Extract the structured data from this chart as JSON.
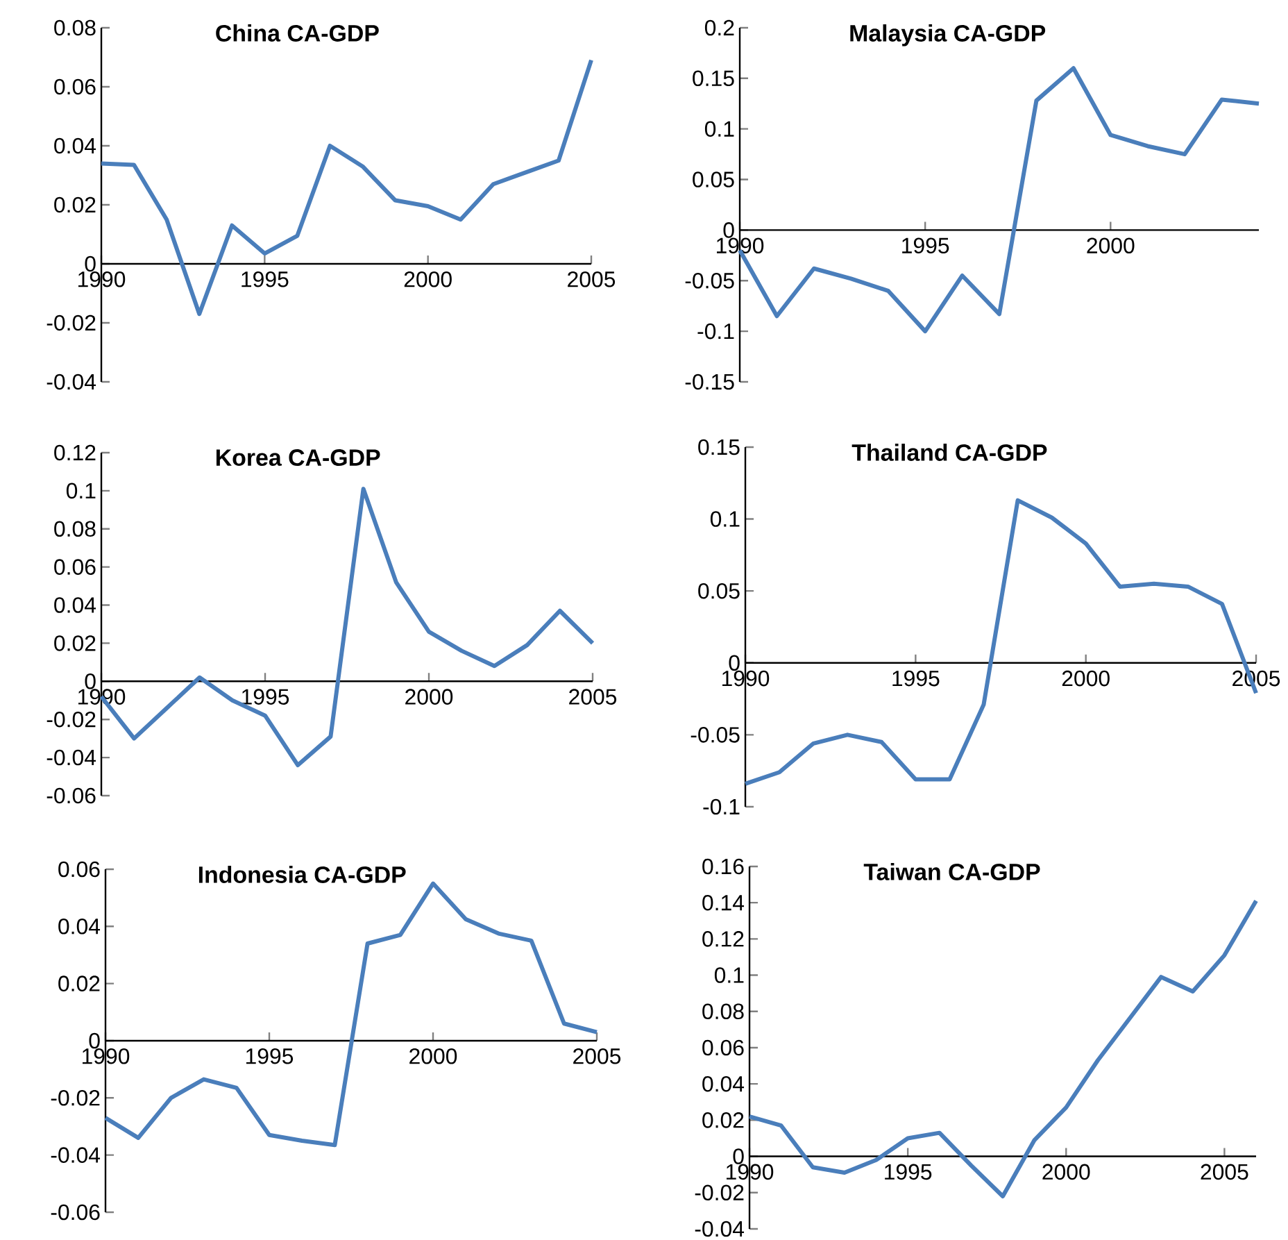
{
  "chart_data": [
    {
      "type": "line",
      "title": "China CA-GDP",
      "color": "#4a7ebb",
      "x": [
        1990,
        1991,
        1992,
        1993,
        1994,
        1995,
        1996,
        1997,
        1998,
        1999,
        2000,
        2001,
        2002,
        2003,
        2004,
        2005
      ],
      "values": [
        0.034,
        0.0335,
        0.015,
        -0.017,
        0.013,
        0.0035,
        0.0095,
        0.04,
        0.033,
        0.0215,
        0.0195,
        0.015,
        0.027,
        0.031,
        0.035,
        0.069
      ],
      "xlim": [
        1990,
        2005
      ],
      "ylim": [
        -0.04,
        0.08
      ],
      "xticks": [
        1990,
        1995,
        2000,
        2005
      ],
      "yticks": [
        -0.04,
        -0.02,
        0,
        0.02,
        0.04,
        0.06,
        0.08
      ]
    },
    {
      "type": "line",
      "title": "Malaysia CA-GDP",
      "color": "#4a7ebb",
      "x": [
        1990,
        1991,
        1992,
        1993,
        1994,
        1995,
        1996,
        1997,
        1998,
        1999,
        2000,
        2001,
        2002,
        2003,
        2004
      ],
      "values": [
        -0.02,
        -0.085,
        -0.038,
        -0.048,
        -0.06,
        -0.1,
        -0.045,
        -0.083,
        0.128,
        0.16,
        0.094,
        0.083,
        0.075,
        0.129,
        0.125
      ],
      "xlim": [
        1990,
        2004
      ],
      "ylim": [
        -0.15,
        0.2
      ],
      "xticks": [
        1990,
        1995,
        2000
      ],
      "yticks": [
        -0.15,
        -0.1,
        -0.05,
        0,
        0.05,
        0.1,
        0.15,
        0.2
      ]
    },
    {
      "type": "line",
      "title": "Korea CA-GDP",
      "color": "#4a7ebb",
      "x": [
        1990,
        1991,
        1992,
        1993,
        1994,
        1995,
        1996,
        1997,
        1998,
        1999,
        2000,
        2001,
        2002,
        2003,
        2004,
        2005
      ],
      "values": [
        -0.008,
        -0.03,
        -0.014,
        0.002,
        -0.01,
        -0.018,
        -0.044,
        -0.029,
        0.101,
        0.052,
        0.026,
        0.016,
        0.008,
        0.019,
        0.037,
        0.02
      ],
      "xlim": [
        1990,
        2005
      ],
      "ylim": [
        -0.06,
        0.12
      ],
      "xticks": [
        1990,
        1995,
        2000,
        2005
      ],
      "yticks": [
        -0.06,
        -0.04,
        -0.02,
        0,
        0.02,
        0.04,
        0.06,
        0.08,
        0.1,
        0.12
      ]
    },
    {
      "type": "line",
      "title": "Thailand CA-GDP",
      "color": "#4a7ebb",
      "x": [
        1990,
        1991,
        1992,
        1993,
        1994,
        1995,
        1996,
        1997,
        1998,
        1999,
        2000,
        2001,
        2002,
        2003,
        2004,
        2005
      ],
      "values": [
        -0.084,
        -0.076,
        -0.056,
        -0.05,
        -0.055,
        -0.081,
        -0.081,
        -0.029,
        0.113,
        0.101,
        0.083,
        0.053,
        0.055,
        0.053,
        0.041,
        -0.021
      ],
      "xlim": [
        1990,
        2005
      ],
      "ylim": [
        -0.1,
        0.15
      ],
      "xticks": [
        1990,
        1995,
        2000,
        2005
      ],
      "yticks": [
        -0.1,
        -0.05,
        0,
        0.05,
        0.1,
        0.15
      ]
    },
    {
      "type": "line",
      "title": "Indonesia CA-GDP",
      "color": "#4a7ebb",
      "x": [
        1990,
        1991,
        1992,
        1993,
        1994,
        1995,
        1996,
        1997,
        1998,
        1999,
        2000,
        2001,
        2002,
        2003,
        2004,
        2005
      ],
      "values": [
        -0.027,
        -0.034,
        -0.02,
        -0.0135,
        -0.0165,
        -0.033,
        -0.035,
        -0.0365,
        0.034,
        0.037,
        0.055,
        0.0425,
        0.0375,
        0.035,
        0.006,
        0.003
      ],
      "xlim": [
        1990,
        2005
      ],
      "ylim": [
        -0.06,
        0.06
      ],
      "xticks": [
        1990,
        1995,
        2000,
        2005
      ],
      "yticks": [
        -0.06,
        -0.04,
        -0.02,
        0,
        0.02,
        0.04,
        0.06
      ]
    },
    {
      "type": "line",
      "title": "Taiwan CA-GDP",
      "color": "#4a7ebb",
      "x": [
        1990,
        1991,
        1992,
        1993,
        1994,
        1995,
        1996,
        1997,
        1998,
        1999,
        2000,
        2001,
        2002,
        2003,
        2004,
        2005,
        2006
      ],
      "values": [
        0.022,
        0.017,
        -0.006,
        -0.009,
        -0.002,
        0.01,
        0.013,
        -0.005,
        -0.022,
        0.009,
        0.027,
        0.053,
        0.076,
        0.099,
        0.091,
        0.111,
        0.141
      ],
      "xlim": [
        1990,
        2006
      ],
      "ylim": [
        -0.04,
        0.16
      ],
      "xticks": [
        1990,
        1995,
        2000,
        2005
      ],
      "yticks": [
        -0.04,
        -0.02,
        0,
        0.02,
        0.04,
        0.06,
        0.08,
        0.1,
        0.12,
        0.14,
        0.16
      ]
    }
  ]
}
